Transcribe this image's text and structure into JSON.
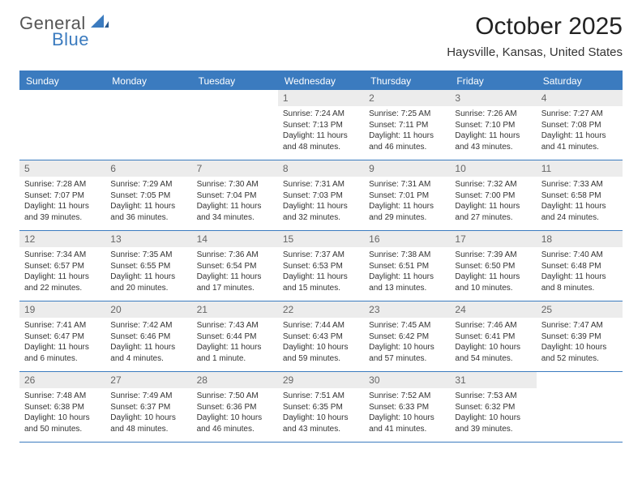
{
  "logo": {
    "text1": "General",
    "text2": "Blue",
    "color1": "#555555",
    "color2": "#3b7bbf"
  },
  "title": "October 2025",
  "location": "Haysville, Kansas, United States",
  "header_bg": "#3b7bbf",
  "daynum_bg": "#ececec",
  "weekdays": [
    "Sunday",
    "Monday",
    "Tuesday",
    "Wednesday",
    "Thursday",
    "Friday",
    "Saturday"
  ],
  "weeks": [
    [
      {
        "n": "",
        "sr": "",
        "ss": "",
        "dl1": "",
        "dl2": ""
      },
      {
        "n": "",
        "sr": "",
        "ss": "",
        "dl1": "",
        "dl2": ""
      },
      {
        "n": "",
        "sr": "",
        "ss": "",
        "dl1": "",
        "dl2": ""
      },
      {
        "n": "1",
        "sr": "Sunrise: 7:24 AM",
        "ss": "Sunset: 7:13 PM",
        "dl1": "Daylight: 11 hours",
        "dl2": "and 48 minutes."
      },
      {
        "n": "2",
        "sr": "Sunrise: 7:25 AM",
        "ss": "Sunset: 7:11 PM",
        "dl1": "Daylight: 11 hours",
        "dl2": "and 46 minutes."
      },
      {
        "n": "3",
        "sr": "Sunrise: 7:26 AM",
        "ss": "Sunset: 7:10 PM",
        "dl1": "Daylight: 11 hours",
        "dl2": "and 43 minutes."
      },
      {
        "n": "4",
        "sr": "Sunrise: 7:27 AM",
        "ss": "Sunset: 7:08 PM",
        "dl1": "Daylight: 11 hours",
        "dl2": "and 41 minutes."
      }
    ],
    [
      {
        "n": "5",
        "sr": "Sunrise: 7:28 AM",
        "ss": "Sunset: 7:07 PM",
        "dl1": "Daylight: 11 hours",
        "dl2": "and 39 minutes."
      },
      {
        "n": "6",
        "sr": "Sunrise: 7:29 AM",
        "ss": "Sunset: 7:05 PM",
        "dl1": "Daylight: 11 hours",
        "dl2": "and 36 minutes."
      },
      {
        "n": "7",
        "sr": "Sunrise: 7:30 AM",
        "ss": "Sunset: 7:04 PM",
        "dl1": "Daylight: 11 hours",
        "dl2": "and 34 minutes."
      },
      {
        "n": "8",
        "sr": "Sunrise: 7:31 AM",
        "ss": "Sunset: 7:03 PM",
        "dl1": "Daylight: 11 hours",
        "dl2": "and 32 minutes."
      },
      {
        "n": "9",
        "sr": "Sunrise: 7:31 AM",
        "ss": "Sunset: 7:01 PM",
        "dl1": "Daylight: 11 hours",
        "dl2": "and 29 minutes."
      },
      {
        "n": "10",
        "sr": "Sunrise: 7:32 AM",
        "ss": "Sunset: 7:00 PM",
        "dl1": "Daylight: 11 hours",
        "dl2": "and 27 minutes."
      },
      {
        "n": "11",
        "sr": "Sunrise: 7:33 AM",
        "ss": "Sunset: 6:58 PM",
        "dl1": "Daylight: 11 hours",
        "dl2": "and 24 minutes."
      }
    ],
    [
      {
        "n": "12",
        "sr": "Sunrise: 7:34 AM",
        "ss": "Sunset: 6:57 PM",
        "dl1": "Daylight: 11 hours",
        "dl2": "and 22 minutes."
      },
      {
        "n": "13",
        "sr": "Sunrise: 7:35 AM",
        "ss": "Sunset: 6:55 PM",
        "dl1": "Daylight: 11 hours",
        "dl2": "and 20 minutes."
      },
      {
        "n": "14",
        "sr": "Sunrise: 7:36 AM",
        "ss": "Sunset: 6:54 PM",
        "dl1": "Daylight: 11 hours",
        "dl2": "and 17 minutes."
      },
      {
        "n": "15",
        "sr": "Sunrise: 7:37 AM",
        "ss": "Sunset: 6:53 PM",
        "dl1": "Daylight: 11 hours",
        "dl2": "and 15 minutes."
      },
      {
        "n": "16",
        "sr": "Sunrise: 7:38 AM",
        "ss": "Sunset: 6:51 PM",
        "dl1": "Daylight: 11 hours",
        "dl2": "and 13 minutes."
      },
      {
        "n": "17",
        "sr": "Sunrise: 7:39 AM",
        "ss": "Sunset: 6:50 PM",
        "dl1": "Daylight: 11 hours",
        "dl2": "and 10 minutes."
      },
      {
        "n": "18",
        "sr": "Sunrise: 7:40 AM",
        "ss": "Sunset: 6:48 PM",
        "dl1": "Daylight: 11 hours",
        "dl2": "and 8 minutes."
      }
    ],
    [
      {
        "n": "19",
        "sr": "Sunrise: 7:41 AM",
        "ss": "Sunset: 6:47 PM",
        "dl1": "Daylight: 11 hours",
        "dl2": "and 6 minutes."
      },
      {
        "n": "20",
        "sr": "Sunrise: 7:42 AM",
        "ss": "Sunset: 6:46 PM",
        "dl1": "Daylight: 11 hours",
        "dl2": "and 4 minutes."
      },
      {
        "n": "21",
        "sr": "Sunrise: 7:43 AM",
        "ss": "Sunset: 6:44 PM",
        "dl1": "Daylight: 11 hours",
        "dl2": "and 1 minute."
      },
      {
        "n": "22",
        "sr": "Sunrise: 7:44 AM",
        "ss": "Sunset: 6:43 PM",
        "dl1": "Daylight: 10 hours",
        "dl2": "and 59 minutes."
      },
      {
        "n": "23",
        "sr": "Sunrise: 7:45 AM",
        "ss": "Sunset: 6:42 PM",
        "dl1": "Daylight: 10 hours",
        "dl2": "and 57 minutes."
      },
      {
        "n": "24",
        "sr": "Sunrise: 7:46 AM",
        "ss": "Sunset: 6:41 PM",
        "dl1": "Daylight: 10 hours",
        "dl2": "and 54 minutes."
      },
      {
        "n": "25",
        "sr": "Sunrise: 7:47 AM",
        "ss": "Sunset: 6:39 PM",
        "dl1": "Daylight: 10 hours",
        "dl2": "and 52 minutes."
      }
    ],
    [
      {
        "n": "26",
        "sr": "Sunrise: 7:48 AM",
        "ss": "Sunset: 6:38 PM",
        "dl1": "Daylight: 10 hours",
        "dl2": "and 50 minutes."
      },
      {
        "n": "27",
        "sr": "Sunrise: 7:49 AM",
        "ss": "Sunset: 6:37 PM",
        "dl1": "Daylight: 10 hours",
        "dl2": "and 48 minutes."
      },
      {
        "n": "28",
        "sr": "Sunrise: 7:50 AM",
        "ss": "Sunset: 6:36 PM",
        "dl1": "Daylight: 10 hours",
        "dl2": "and 46 minutes."
      },
      {
        "n": "29",
        "sr": "Sunrise: 7:51 AM",
        "ss": "Sunset: 6:35 PM",
        "dl1": "Daylight: 10 hours",
        "dl2": "and 43 minutes."
      },
      {
        "n": "30",
        "sr": "Sunrise: 7:52 AM",
        "ss": "Sunset: 6:33 PM",
        "dl1": "Daylight: 10 hours",
        "dl2": "and 41 minutes."
      },
      {
        "n": "31",
        "sr": "Sunrise: 7:53 AM",
        "ss": "Sunset: 6:32 PM",
        "dl1": "Daylight: 10 hours",
        "dl2": "and 39 minutes."
      },
      {
        "n": "",
        "sr": "",
        "ss": "",
        "dl1": "",
        "dl2": ""
      }
    ]
  ]
}
